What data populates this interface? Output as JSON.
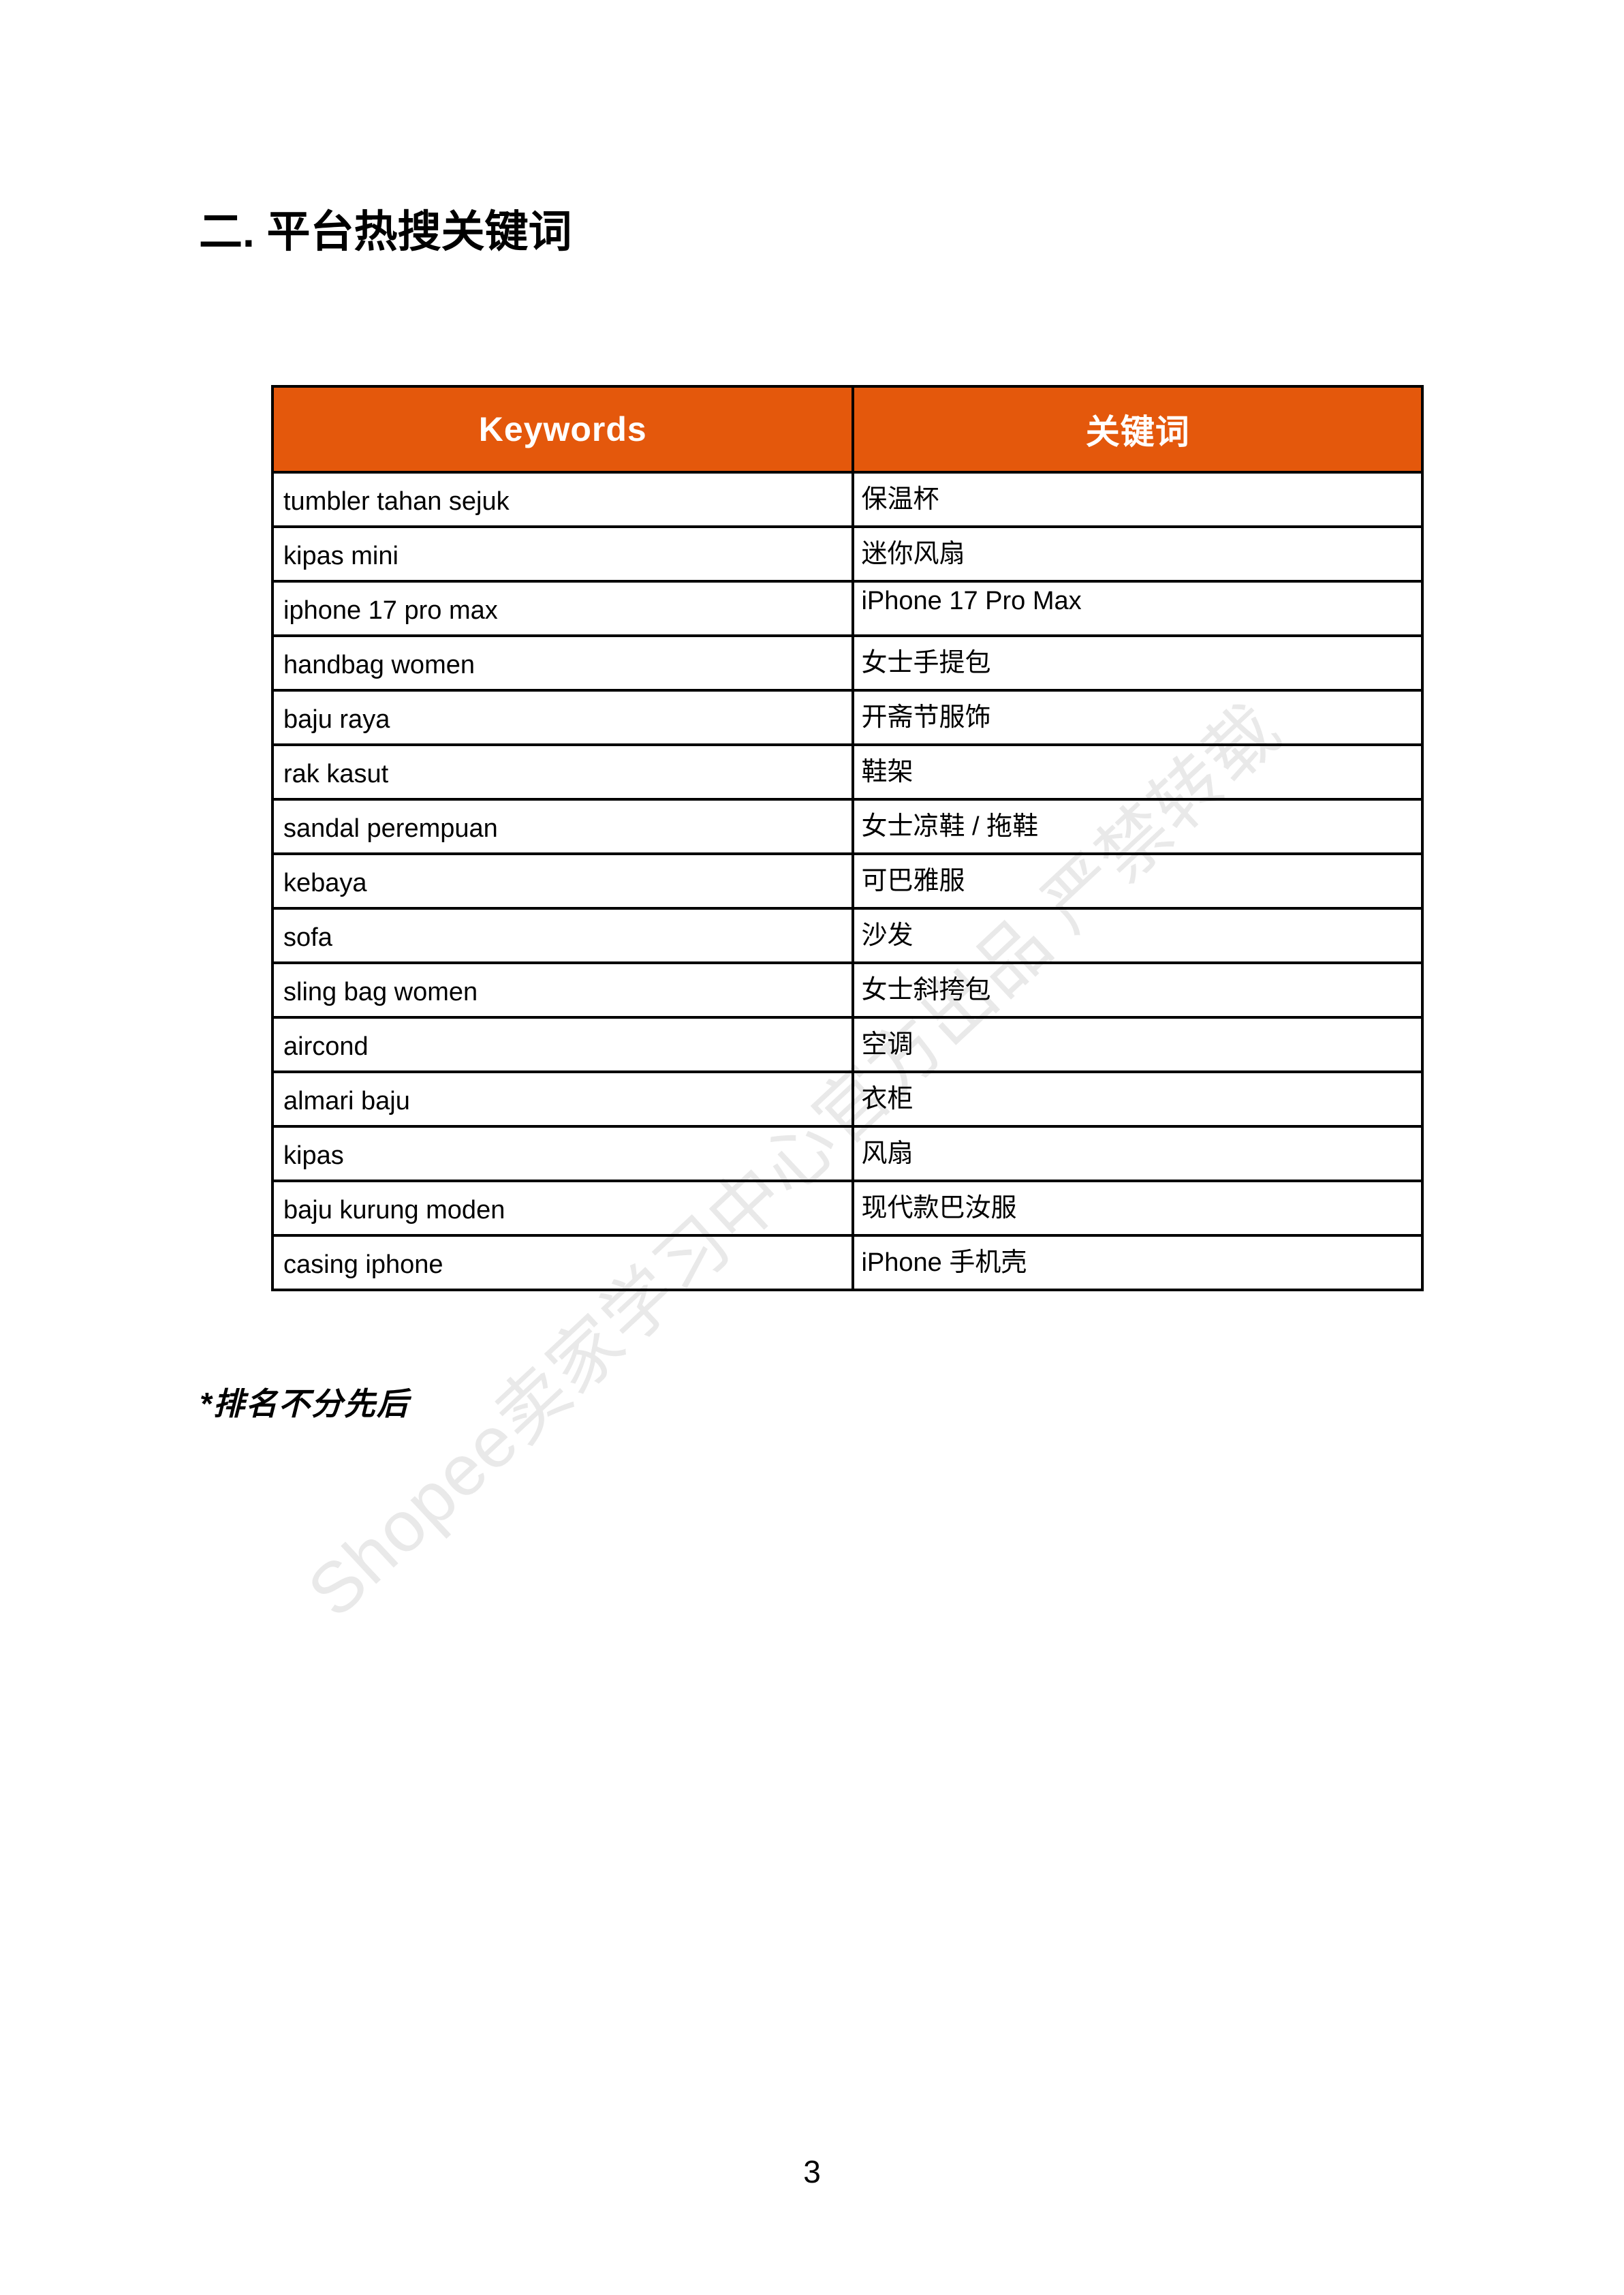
{
  "page": {
    "heading": "二. 平台热搜关键词",
    "footnote": "*排名不分先后",
    "page_number": "3",
    "watermark": "Shopee卖家学习中心官方出品 严禁转载"
  },
  "table": {
    "header_bg": "#E4580C",
    "header_text_color": "#FFFFFF",
    "headers": {
      "keywords": "Keywords",
      "translation": "关键词"
    },
    "rows": [
      {
        "keyword": "tumbler tahan sejuk",
        "translation": "保温杯"
      },
      {
        "keyword": "kipas mini",
        "translation": "迷你风扇"
      },
      {
        "keyword": "iphone 17 pro max",
        "translation": "iPhone 17 Pro Max"
      },
      {
        "keyword": "handbag women",
        "translation": "女士手提包"
      },
      {
        "keyword": "baju raya",
        "translation": "开斋节服饰"
      },
      {
        "keyword": "rak kasut",
        "translation": "鞋架"
      },
      {
        "keyword": "sandal perempuan",
        "translation": "女士凉鞋 / 拖鞋"
      },
      {
        "keyword": "kebaya",
        "translation": "可巴雅服"
      },
      {
        "keyword": "sofa",
        "translation": "沙发"
      },
      {
        "keyword": "sling bag women",
        "translation": "女士斜挎包"
      },
      {
        "keyword": "aircond",
        "translation": "空调"
      },
      {
        "keyword": "almari baju",
        "translation": "衣柜"
      },
      {
        "keyword": "kipas",
        "translation": "风扇"
      },
      {
        "keyword": "baju kurung moden",
        "translation": "现代款巴汝服"
      },
      {
        "keyword": "casing iphone",
        "translation": "iPhone 手机壳"
      }
    ]
  }
}
